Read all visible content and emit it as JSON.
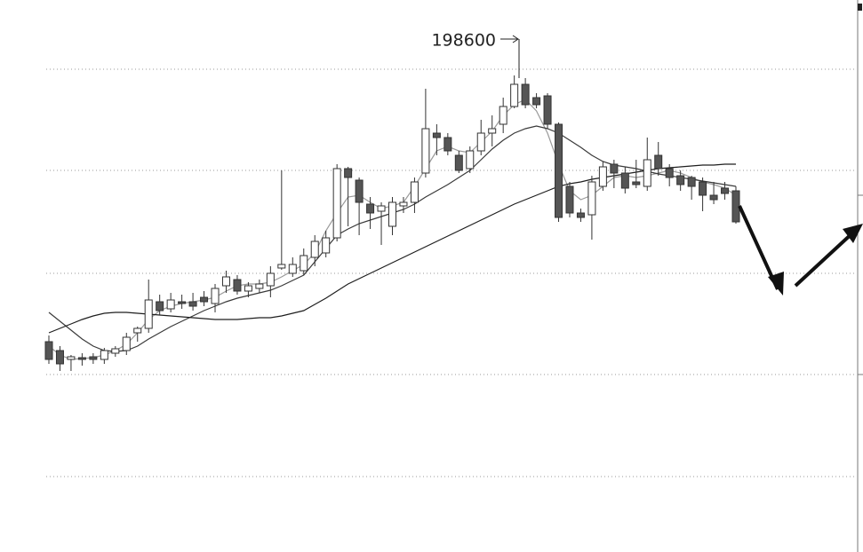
{
  "chart_data": {
    "type": "candlestick",
    "annotation": "198600",
    "ylim": [
      144900,
      207100
    ],
    "open": [
      168600,
      167600,
      166600,
      166800,
      166900,
      166600,
      167300,
      167600,
      169600,
      170100,
      173100,
      172300,
      173100,
      173100,
      173600,
      172900,
      174900,
      175600,
      174300,
      174600,
      174900,
      176900,
      176300,
      176600,
      178100,
      178600,
      180300,
      188100,
      186800,
      184100,
      183300,
      181600,
      183900,
      184300,
      187600,
      192100,
      191600,
      189600,
      188100,
      190100,
      192100,
      193100,
      195100,
      197600,
      196100,
      196300,
      193100,
      186100,
      183100,
      182900,
      186100,
      188600,
      187600,
      186600,
      186100,
      189600,
      188100,
      187300,
      187100,
      186600,
      185100,
      185900,
      185600
    ],
    "high": [
      169300,
      168100,
      167100,
      167300,
      167300,
      167900,
      168100,
      169600,
      170300,
      175600,
      173900,
      174100,
      173900,
      174100,
      174300,
      175100,
      176600,
      176100,
      175300,
      175600,
      177100,
      187900,
      178100,
      179100,
      180600,
      181100,
      188600,
      188300,
      187100,
      184900,
      184300,
      184900,
      184900,
      187100,
      197100,
      193100,
      192100,
      190100,
      190600,
      193600,
      194100,
      196100,
      198600,
      198300,
      196600,
      196600,
      193300,
      186600,
      183600,
      187300,
      188900,
      189100,
      188300,
      189100,
      191600,
      191100,
      188600,
      187900,
      187300,
      187100,
      186600,
      186600,
      186100
    ],
    "low": [
      166100,
      165300,
      165300,
      165900,
      166100,
      166100,
      166900,
      167100,
      168600,
      169600,
      171600,
      171900,
      172300,
      172100,
      172600,
      171900,
      174100,
      173900,
      173600,
      174100,
      173600,
      176700,
      175900,
      176100,
      177100,
      178100,
      179900,
      181600,
      180600,
      181300,
      179500,
      180600,
      183100,
      183100,
      187100,
      189600,
      189600,
      187600,
      187600,
      189600,
      190600,
      192100,
      194900,
      194900,
      194900,
      192600,
      182100,
      182600,
      182100,
      180100,
      185600,
      185900,
      185300,
      185900,
      185600,
      187300,
      186100,
      185600,
      184600,
      183300,
      184100,
      184600,
      181900
    ],
    "close": [
      166600,
      166100,
      166900,
      166600,
      166600,
      167600,
      167800,
      169100,
      170100,
      173300,
      172100,
      173300,
      172900,
      172600,
      173100,
      174600,
      175900,
      174300,
      174900,
      175100,
      176300,
      177300,
      177300,
      178300,
      179900,
      180300,
      188100,
      187100,
      184300,
      183100,
      183900,
      184300,
      184300,
      186600,
      192600,
      191600,
      190100,
      187900,
      190100,
      192100,
      192600,
      195100,
      197600,
      195300,
      195300,
      193100,
      182600,
      183100,
      182600,
      186600,
      188300,
      187600,
      185900,
      186300,
      189100,
      188100,
      187100,
      186300,
      186100,
      185100,
      184600,
      185300,
      182100
    ],
    "series": [
      {
        "color": "#9a9a9a",
        "values": [
          168100,
          167100,
          166600,
          166700,
          166800,
          167100,
          167600,
          168300,
          169600,
          171100,
          172100,
          172600,
          172900,
          173100,
          173300,
          173600,
          174300,
          174900,
          175100,
          175100,
          175300,
          175900,
          176600,
          177300,
          178600,
          181100,
          183100,
          184900,
          185100,
          184300,
          183600,
          183900,
          184300,
          186100,
          188100,
          190100,
          190600,
          190100,
          189900,
          191100,
          192300,
          194100,
          195300,
          195900,
          194600,
          192100,
          188600,
          185600,
          184600,
          185100,
          186100,
          187100,
          187300,
          187100,
          187300,
          187600,
          187900,
          187600,
          187100,
          186600,
          186300,
          185900,
          185100
        ]
      },
      {
        "color": "#3a3a3a",
        "values": [
          171900,
          170900,
          169900,
          168900,
          168100,
          167600,
          167500,
          167600,
          168100,
          168900,
          169600,
          170300,
          170900,
          171500,
          172100,
          172600,
          173100,
          173500,
          173800,
          174100,
          174400,
          174900,
          175500,
          176100,
          177600,
          179100,
          180600,
          181300,
          181900,
          182300,
          182700,
          183100,
          183500,
          184100,
          184900,
          185600,
          186300,
          187100,
          187900,
          189100,
          190300,
          191300,
          192100,
          192600,
          192900,
          192600,
          192100,
          191300,
          190500,
          189600,
          188900,
          188500,
          188300,
          188100,
          187800,
          187500,
          187300,
          187100,
          186900,
          186700,
          186500,
          186300,
          186100
        ]
      },
      {
        "color": "#1e1e1e",
        "values": [
          169600,
          170100,
          170600,
          171100,
          171500,
          171800,
          171900,
          171900,
          171800,
          171700,
          171600,
          171500,
          171400,
          171300,
          171200,
          171100,
          171100,
          171100,
          171200,
          171300,
          171300,
          171500,
          171800,
          172100,
          172800,
          173500,
          174300,
          175100,
          175700,
          176300,
          176900,
          177500,
          178100,
          178700,
          179300,
          179900,
          180500,
          181100,
          181700,
          182300,
          182900,
          183500,
          184100,
          184600,
          185100,
          185600,
          186100,
          186400,
          186600,
          186900,
          187100,
          187300,
          187500,
          187700,
          187900,
          188100,
          188200,
          188300,
          188400,
          188500,
          188500,
          188600,
          188600
        ]
      }
    ]
  }
}
